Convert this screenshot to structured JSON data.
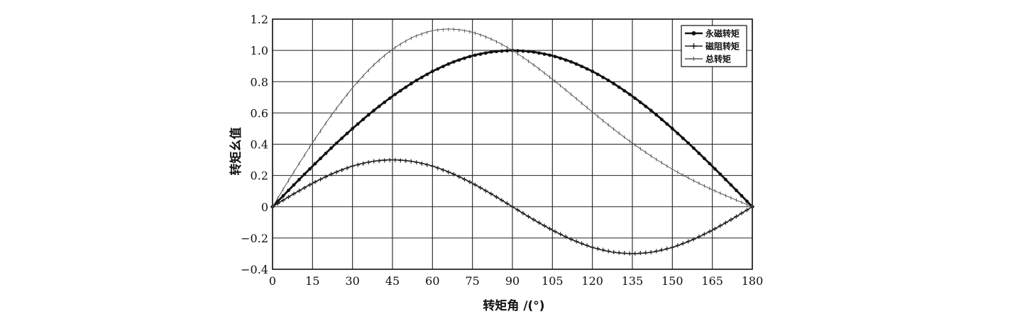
{
  "chart_data": {
    "type": "line",
    "xlabel": "转矩角 /(°)",
    "ylabel": "转矩幺值",
    "xlim": [
      0,
      180
    ],
    "ylim": [
      -0.4,
      1.2
    ],
    "x_ticks": [
      0,
      15,
      30,
      45,
      60,
      75,
      90,
      105,
      120,
      135,
      150,
      165,
      180
    ],
    "x_tick_labels": [
      "0",
      "15",
      "30",
      "45",
      "60",
      "75",
      "90",
      "105",
      "120",
      "135",
      "150",
      "165",
      "180"
    ],
    "y_ticks": [
      -0.4,
      -0.2,
      0,
      0.2,
      0.4,
      0.6,
      0.8,
      1.0,
      1.2
    ],
    "y_tick_labels": [
      "−0.4",
      "−0.2",
      "0",
      "0.2",
      "0.4",
      "0.6",
      "0.8",
      "1.0",
      "1.2"
    ],
    "grid": true,
    "legend_position": "top-right",
    "x": [
      0,
      7.5,
      15,
      22.5,
      30,
      37.5,
      45,
      52.5,
      60,
      67.5,
      75,
      82.5,
      90,
      97.5,
      105,
      112.5,
      120,
      127.5,
      135,
      142.5,
      150,
      157.5,
      165,
      172.5,
      180
    ],
    "series": [
      {
        "name": "永磁转矩",
        "marker": "dot",
        "color": "#111111",
        "values": [
          0.0,
          0.131,
          0.259,
          0.383,
          0.5,
          0.609,
          0.707,
          0.793,
          0.866,
          0.924,
          0.966,
          0.991,
          1.0,
          0.991,
          0.966,
          0.924,
          0.866,
          0.793,
          0.707,
          0.609,
          0.5,
          0.383,
          0.259,
          0.131,
          0.0
        ]
      },
      {
        "name": "磁阻转矩",
        "marker": "plus",
        "color": "#222222",
        "values": [
          0.0,
          0.078,
          0.15,
          0.212,
          0.26,
          0.29,
          0.3,
          0.29,
          0.26,
          0.212,
          0.15,
          0.078,
          0.0,
          -0.078,
          -0.15,
          -0.212,
          -0.26,
          -0.29,
          -0.3,
          -0.29,
          -0.26,
          -0.212,
          -0.15,
          -0.078,
          0.0
        ]
      },
      {
        "name": "总转矩",
        "marker": "tick",
        "color": "#555555",
        "values": [
          0.0,
          0.209,
          0.409,
          0.595,
          0.76,
          0.899,
          1.007,
          1.083,
          1.126,
          1.136,
          1.116,
          1.069,
          1.0,
          0.913,
          0.816,
          0.712,
          0.606,
          0.503,
          0.407,
          0.319,
          0.24,
          0.171,
          0.109,
          0.053,
          0.0
        ]
      }
    ]
  }
}
